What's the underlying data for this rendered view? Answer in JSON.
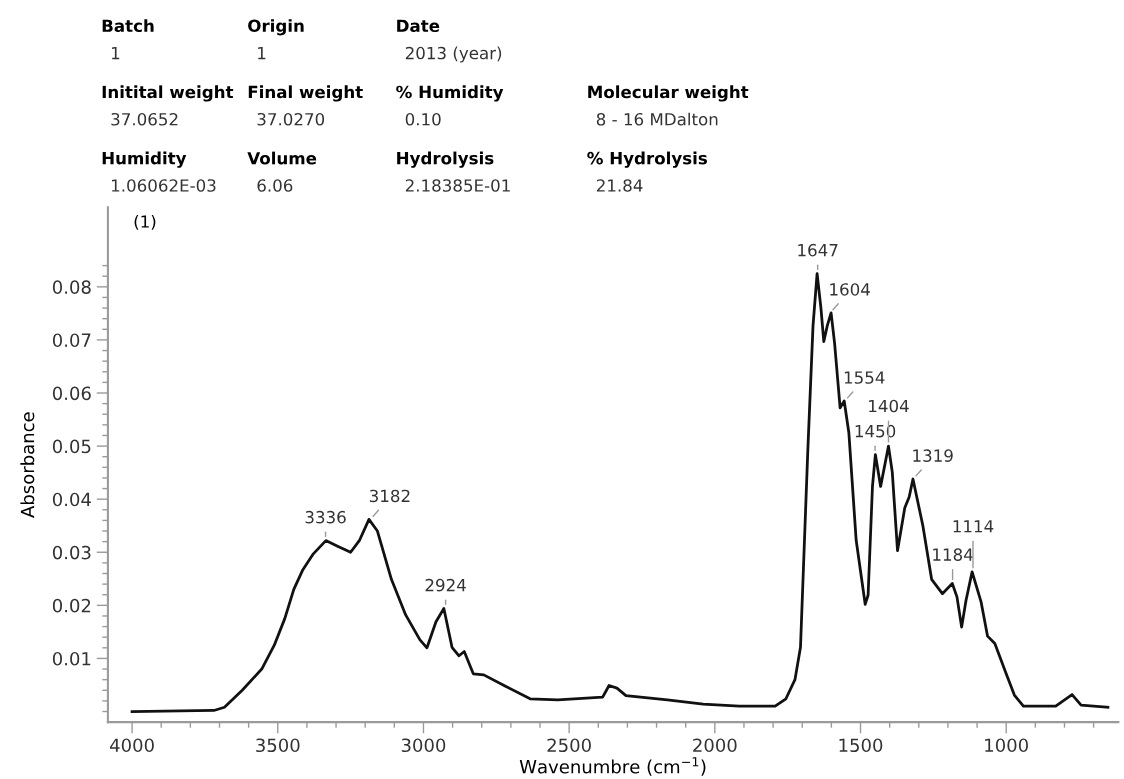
{
  "chart_data": {
    "type": "line",
    "xlabel": "Wavenumbre (cm$^{−1}$)",
    "ylabel": "Absorbance",
    "color": "#111111",
    "grid": false,
    "marker": "none",
    "line_style": "solid",
    "xlim": [
      4083,
      615
    ],
    "xticks": [
      4000,
      3500,
      3000,
      2500,
      2000,
      1500,
      1000
    ],
    "ylim": [
      -0.002,
      0.095
    ],
    "yticks": [
      0.01,
      0.02,
      0.03,
      0.04,
      0.05,
      0.06,
      0.07,
      0.08
    ],
    "x": [
      4000,
      3719,
      3683,
      3622,
      3555,
      3512,
      3476,
      3445,
      3415,
      3378,
      3335,
      3293,
      3250,
      3219,
      3187,
      3158,
      3110,
      3061,
      3012,
      2988,
      2957,
      2930,
      2902,
      2878,
      2860,
      2829,
      2793,
      2720,
      2634,
      2539,
      2385,
      2363,
      2336,
      2305,
      2163,
      2040,
      1916,
      1793,
      1756,
      1725,
      1706,
      1681,
      1663,
      1649,
      1636,
      1626,
      1614,
      1601,
      1589,
      1570,
      1556,
      1540,
      1515,
      1484,
      1474,
      1459,
      1449,
      1431,
      1404,
      1391,
      1373,
      1348,
      1333,
      1320,
      1286,
      1256,
      1219,
      1185,
      1169,
      1153,
      1138,
      1117,
      1086,
      1064,
      1039,
      1002,
      972,
      941,
      830,
      774,
      743,
      651
    ],
    "values": [
      0.0,
      0.0002,
      0.0008,
      0.004,
      0.008,
      0.0125,
      0.0175,
      0.023,
      0.0266,
      0.0297,
      0.0322,
      0.0311,
      0.03,
      0.0323,
      0.0362,
      0.034,
      0.0249,
      0.0182,
      0.0135,
      0.012,
      0.0169,
      0.0194,
      0.0121,
      0.0105,
      0.0113,
      0.0071,
      0.0069,
      0.0048,
      0.0024,
      0.0022,
      0.0027,
      0.0049,
      0.0044,
      0.003,
      0.0022,
      0.0014,
      0.001,
      0.001,
      0.0024,
      0.006,
      0.0121,
      0.049,
      0.0727,
      0.0825,
      0.0761,
      0.0697,
      0.0727,
      0.0751,
      0.0694,
      0.0572,
      0.0585,
      0.0525,
      0.0323,
      0.0202,
      0.0219,
      0.0424,
      0.0484,
      0.0424,
      0.05,
      0.0451,
      0.0303,
      0.0384,
      0.0404,
      0.0438,
      0.035,
      0.0249,
      0.0222,
      0.0241,
      0.0216,
      0.0159,
      0.0209,
      0.0263,
      0.0206,
      0.0142,
      0.0128,
      0.0074,
      0.0031,
      0.001,
      0.001,
      0.0032,
      0.0012,
      0.0008
    ],
    "annotations": [
      "Batch",
      "1",
      "Origin",
      "1",
      "Date",
      "2013 (year)",
      "Initital weight",
      "37.0652",
      "Final weight",
      "37.0270",
      "% Humidity",
      "0.10",
      "Molecular weight",
      "8 - 16 MDalton",
      "Humidity",
      "1.06062E-03",
      "Volume",
      "6.06",
      "Hydrolysis",
      "2.18385E-01",
      "% Hydrolysis",
      "21.84",
      "(1)",
      {
        "text": "3336",
        "x": 3336,
        "y": 0.0322
      },
      {
        "text": "3182",
        "x": 3182,
        "y": 0.0362
      },
      {
        "text": "2924",
        "x": 2924,
        "y": 0.0194
      },
      {
        "text": "1647",
        "x": 1647,
        "y": 0.0825
      },
      {
        "text": "1604",
        "x": 1604,
        "y": 0.0751
      },
      {
        "text": "1554",
        "x": 1554,
        "y": 0.0585
      },
      {
        "text": "1450",
        "x": 1450,
        "y": 0.0484
      },
      {
        "text": "1404",
        "x": 1404,
        "y": 0.05
      },
      {
        "text": "1319",
        "x": 1319,
        "y": 0.0438
      },
      {
        "text": "1184",
        "x": 1184,
        "y": 0.0241
      },
      {
        "text": "1114",
        "x": 1114,
        "y": 0.0263
      }
    ]
  }
}
